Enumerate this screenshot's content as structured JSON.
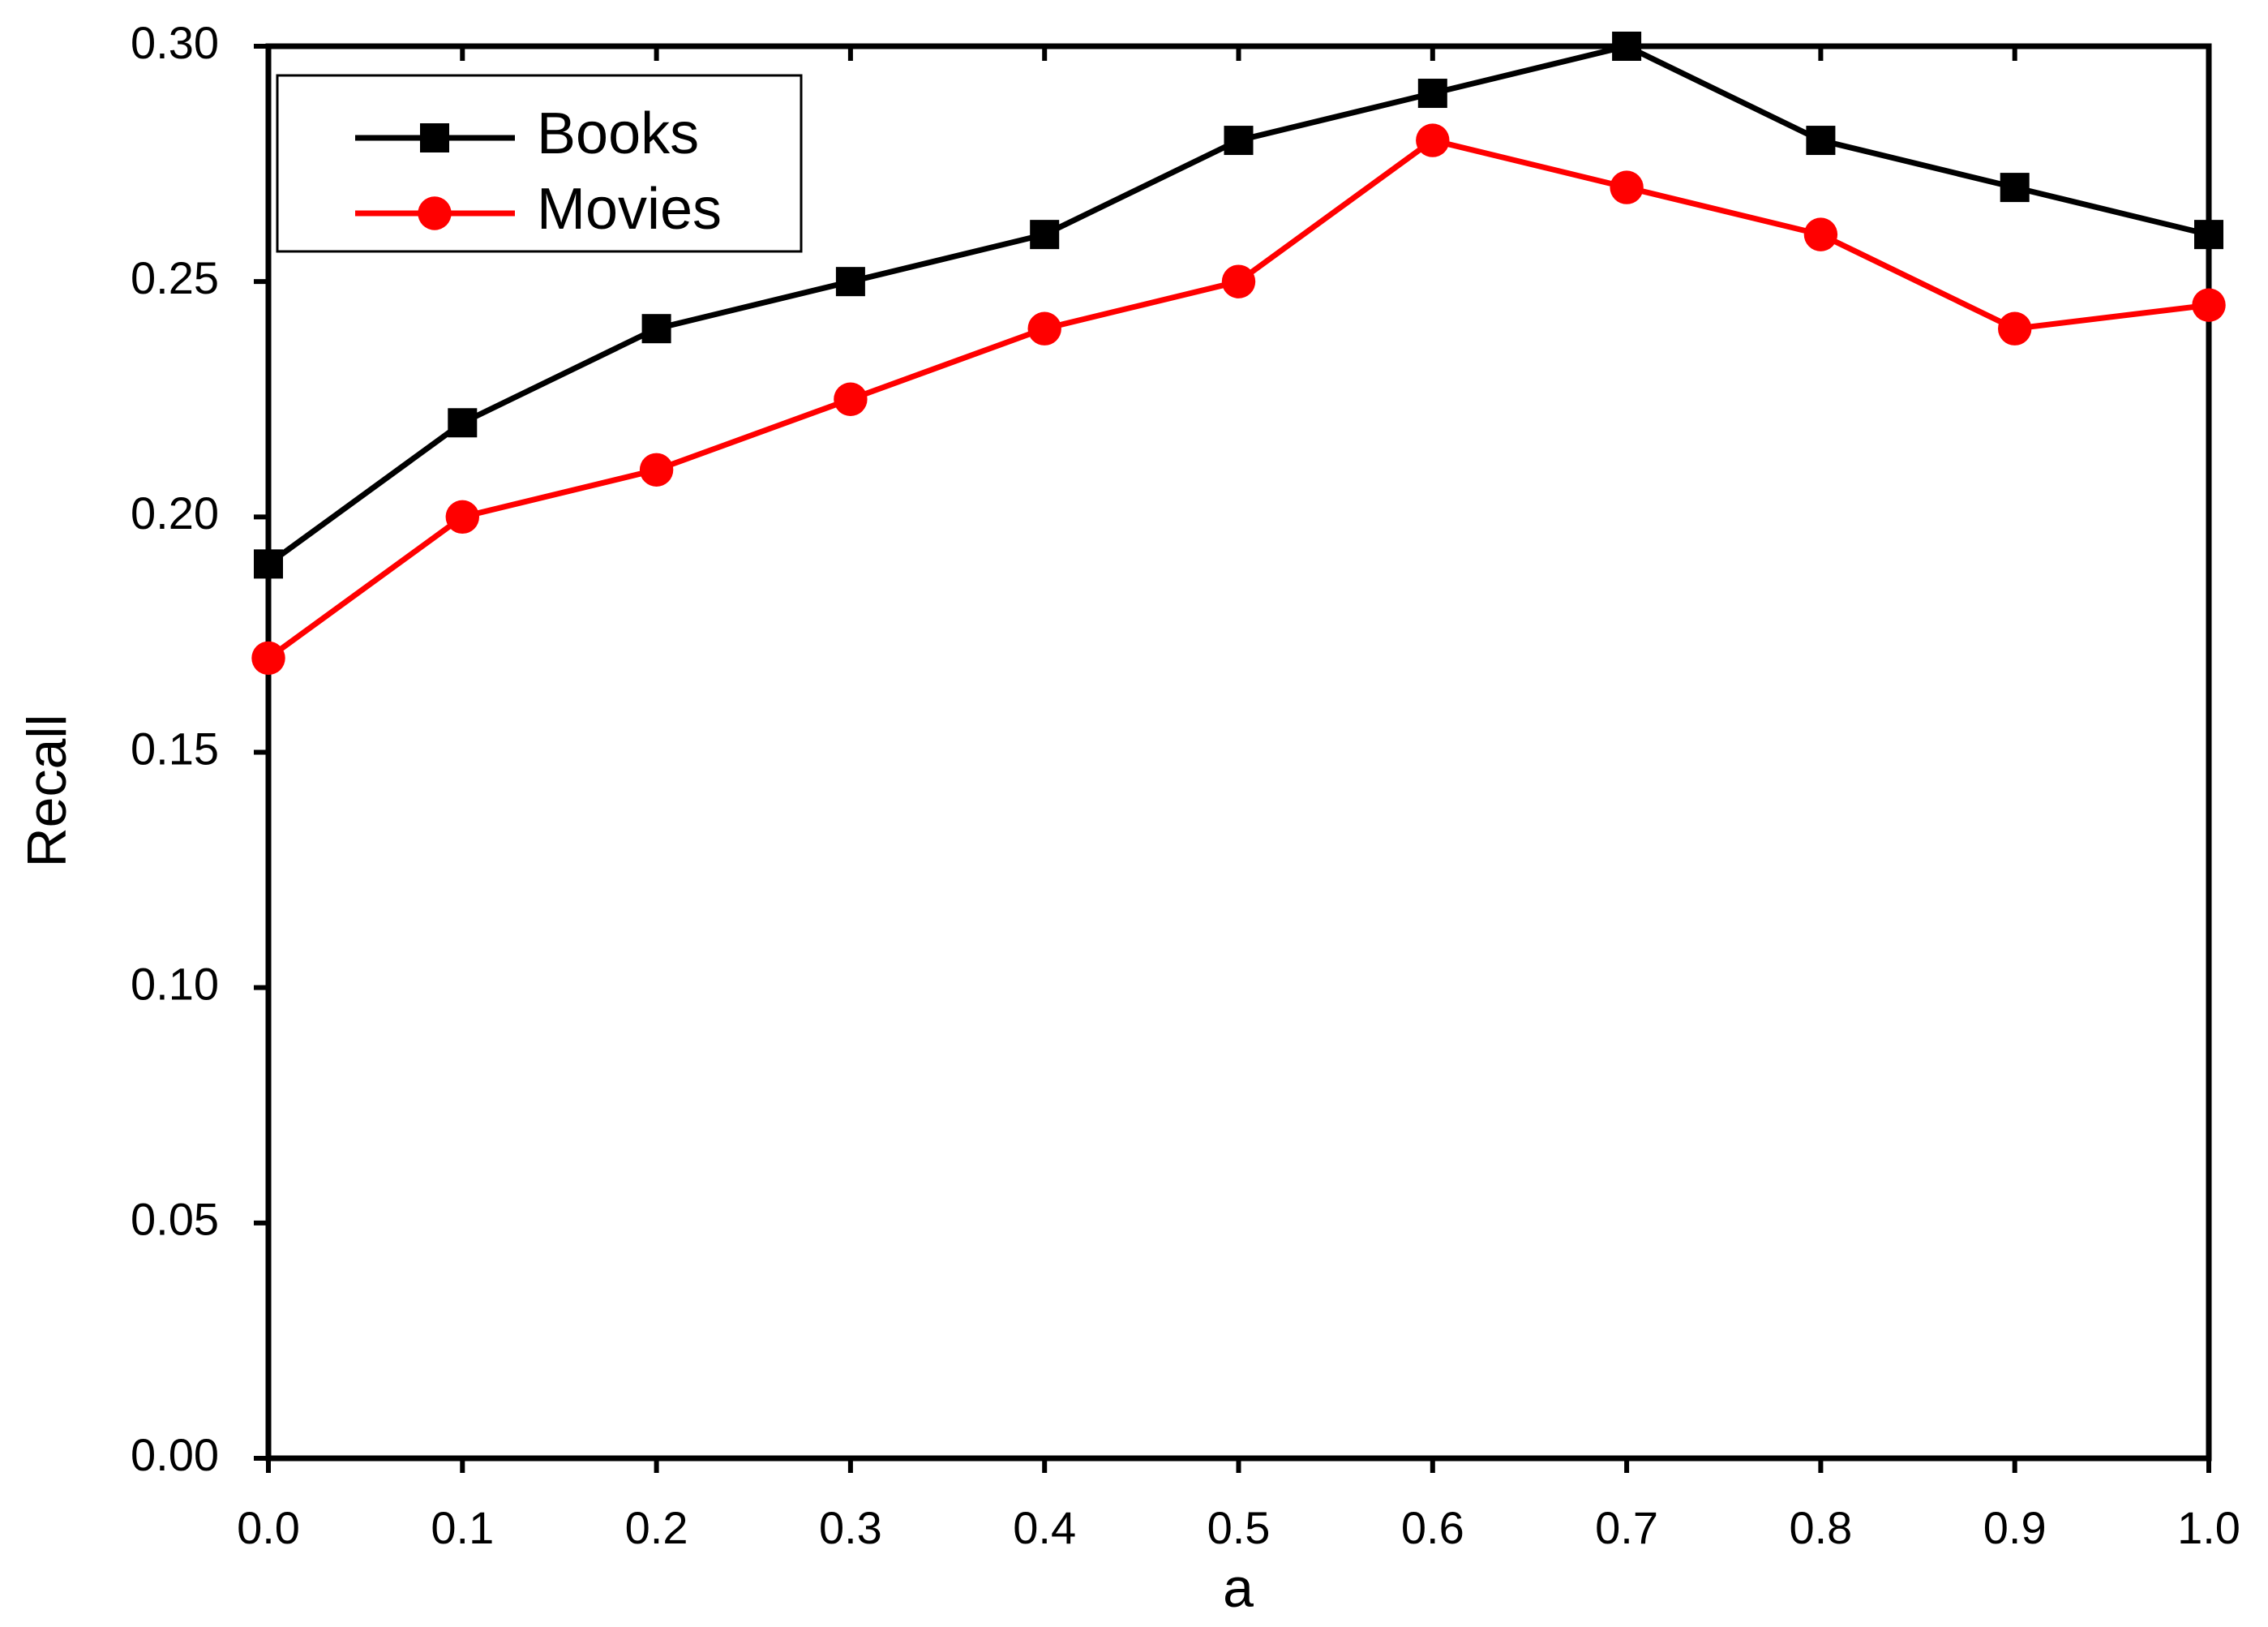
{
  "chart_data": {
    "type": "line",
    "x_label": "a",
    "y_label": "Recall",
    "x": [
      0,
      0.1,
      0.2,
      0.3,
      0.4,
      0.5,
      0.6,
      0.7,
      0.8,
      0.9,
      1
    ],
    "series": [
      {
        "name": "Books",
        "color": "#000000",
        "marker": "square",
        "values": [
          0.19,
          0.22,
          0.24,
          0.25,
          0.26,
          0.28,
          0.29,
          0.3,
          0.28,
          0.27,
          0.26
        ]
      },
      {
        "name": "Movies",
        "color": "#ff0000",
        "marker": "circle",
        "values": [
          0.17,
          0.2,
          0.21,
          0.225,
          0.24,
          0.25,
          0.28,
          0.27,
          0.26,
          0.24,
          0.245
        ]
      }
    ],
    "xlim": [
      0,
      1
    ],
    "xticks": [
      {
        "value": 0,
        "label": "0.0"
      },
      0.1,
      0.2,
      0.3,
      0.4,
      0.5,
      0.6,
      0.7,
      0.8,
      0.9,
      {
        "value": 1,
        "label": "1.0"
      }
    ],
    "ylim": [
      0,
      0.3
    ],
    "yticks": [
      {
        "value": 0,
        "label": "0.00"
      },
      {
        "value": 0.05,
        "label": "0.05"
      },
      {
        "value": 0.1,
        "label": "0.10"
      },
      {
        "value": 0.15,
        "label": "0.15"
      },
      {
        "value": 0.2,
        "label": "0.20"
      },
      {
        "value": 0.25,
        "label": "0.25"
      },
      {
        "value": 0.3,
        "label": "0.30"
      }
    ],
    "legend": "upper left",
    "grid": false
  }
}
